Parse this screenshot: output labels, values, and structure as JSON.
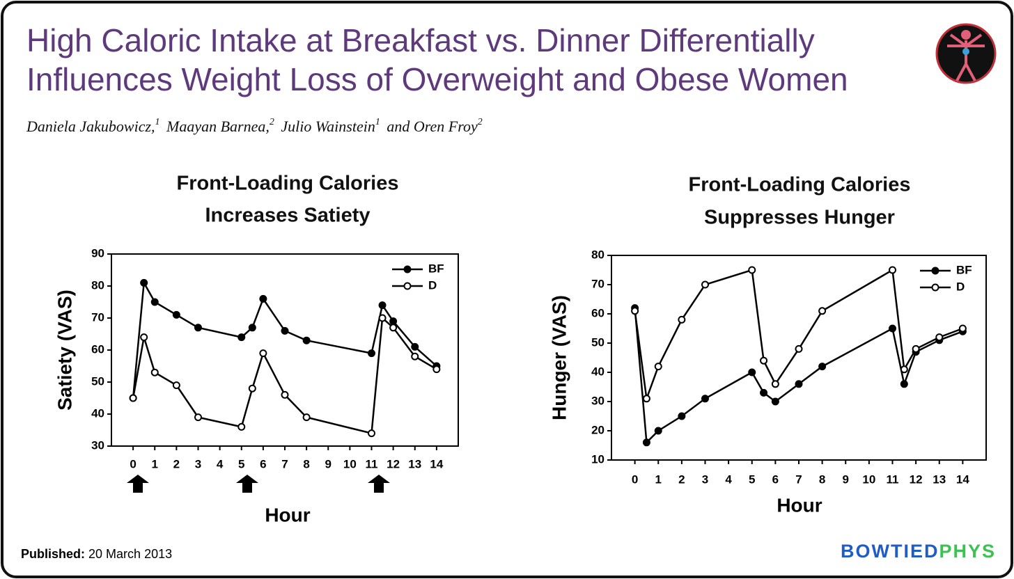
{
  "header": {
    "title": [
      "High Caloric Intake at Breakfast vs. Dinner Differentially",
      "Influences Weight Loss of Overweight and Obese Women"
    ],
    "authors": [
      {
        "name": "Daniela Jakubowicz,",
        "aff": "1"
      },
      {
        "name": "Maayan Barnea,",
        "aff": "2"
      },
      {
        "name": "Julio Wainstein",
        "aff": "1"
      },
      {
        "name": "and Oren Froy",
        "aff": "2"
      }
    ]
  },
  "footer": {
    "published_label": "Published:",
    "published_date": "20 March 2013",
    "brand": [
      "BOWTIED",
      "PHYS"
    ]
  },
  "chart_data": [
    {
      "type": "line",
      "title": [
        "Front-Loading Calories",
        "Increases Satiety"
      ],
      "x_label": "Hour",
      "y_label": "Satiety (VAS)",
      "x": [
        0,
        0.5,
        1,
        2,
        3,
        5,
        5.5,
        6,
        7,
        8,
        11,
        11.5,
        12,
        13,
        14
      ],
      "series": [
        {
          "name": "BF",
          "color": "#000000",
          "marker": "filled",
          "values": [
            45,
            81,
            75,
            71,
            67,
            64,
            67,
            76,
            66,
            63,
            59,
            74,
            69,
            61,
            55
          ]
        },
        {
          "name": "D",
          "color": "#000000",
          "marker": "open",
          "values": [
            45,
            64,
            53,
            49,
            39,
            36,
            48,
            59,
            46,
            39,
            34,
            70,
            67,
            58,
            54
          ]
        }
      ],
      "xlim": [
        -1,
        15
      ],
      "xticks": [
        0,
        1,
        2,
        3,
        4,
        5,
        6,
        7,
        8,
        9,
        10,
        11,
        12,
        13,
        14
      ],
      "ylim": [
        30,
        90
      ],
      "yticks": [
        30,
        40,
        50,
        60,
        70,
        80,
        90
      ],
      "legend": "upper right"
    },
    {
      "type": "line",
      "title": [
        "Front-Loading Calories",
        "Suppresses Hunger"
      ],
      "x_label": "Hour",
      "y_label": "Hunger (VAS)",
      "x": [
        0,
        0.5,
        1,
        2,
        3,
        5,
        5.5,
        6,
        7,
        8,
        11,
        11.5,
        12,
        13,
        14
      ],
      "series": [
        {
          "name": "BF",
          "color": "#000000",
          "marker": "filled",
          "values": [
            62,
            16,
            20,
            25,
            31,
            40,
            33,
            30,
            36,
            42,
            55,
            36,
            47,
            51,
            54
          ]
        },
        {
          "name": "D",
          "color": "#000000",
          "marker": "open",
          "values": [
            61,
            31,
            42,
            58,
            70,
            75,
            44,
            36,
            48,
            61,
            75,
            41,
            48,
            52,
            55
          ]
        }
      ],
      "xlim": [
        -1,
        15
      ],
      "xticks": [
        0,
        1,
        2,
        3,
        4,
        5,
        6,
        7,
        8,
        9,
        10,
        11,
        12,
        13,
        14
      ],
      "ylim": [
        10,
        80
      ],
      "yticks": [
        10,
        20,
        30,
        40,
        50,
        60,
        70,
        80
      ],
      "legend": "upper right"
    }
  ]
}
